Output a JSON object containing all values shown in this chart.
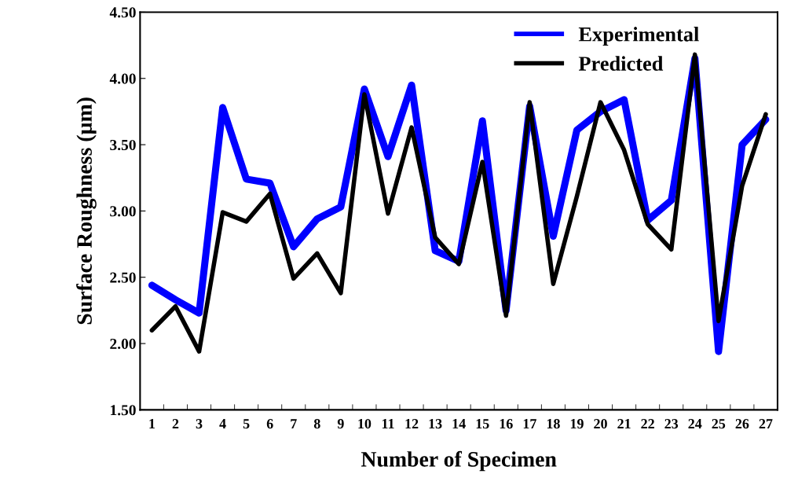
{
  "chart_data": {
    "type": "line",
    "xlabel": "Number of Specimen",
    "ylabel": "Surface Roughness (µm)",
    "categories": [
      "1",
      "2",
      "3",
      "4",
      "5",
      "6",
      "7",
      "8",
      "9",
      "10",
      "11",
      "12",
      "13",
      "14",
      "15",
      "16",
      "17",
      "18",
      "19",
      "20",
      "21",
      "22",
      "23",
      "24",
      "25",
      "26",
      "27"
    ],
    "series": [
      {
        "name": "Experimental",
        "color": "#0000ff",
        "values": [
          2.44,
          2.33,
          2.23,
          3.78,
          3.24,
          3.21,
          2.73,
          2.94,
          3.03,
          3.92,
          3.41,
          3.95,
          2.7,
          2.62,
          3.68,
          2.25,
          3.79,
          2.81,
          3.61,
          3.75,
          3.84,
          2.93,
          3.08,
          4.15,
          1.94,
          3.5,
          3.69
        ]
      },
      {
        "name": "Predicted",
        "color": "#000000",
        "values": [
          2.1,
          2.28,
          1.94,
          2.99,
          2.92,
          3.13,
          2.49,
          2.68,
          2.38,
          3.88,
          2.98,
          3.63,
          2.8,
          2.6,
          3.37,
          2.21,
          3.82,
          2.45,
          3.11,
          3.82,
          3.46,
          2.9,
          2.71,
          4.18,
          2.17,
          3.19,
          3.73
        ]
      }
    ],
    "ylim": [
      1.5,
      4.5
    ],
    "yticks": [
      {
        "value": 1.5,
        "label": "1.50"
      },
      {
        "value": 2.0,
        "label": "2.00"
      },
      {
        "value": 2.5,
        "label": "2.50"
      },
      {
        "value": 3.0,
        "label": "3.00"
      },
      {
        "value": 3.5,
        "label": "3.50"
      },
      {
        "value": 4.0,
        "label": "4.00"
      },
      {
        "value": 4.5,
        "label": "4.50"
      }
    ],
    "grid": false,
    "legend": "top right",
    "marker": "none",
    "line_style": "solid"
  }
}
